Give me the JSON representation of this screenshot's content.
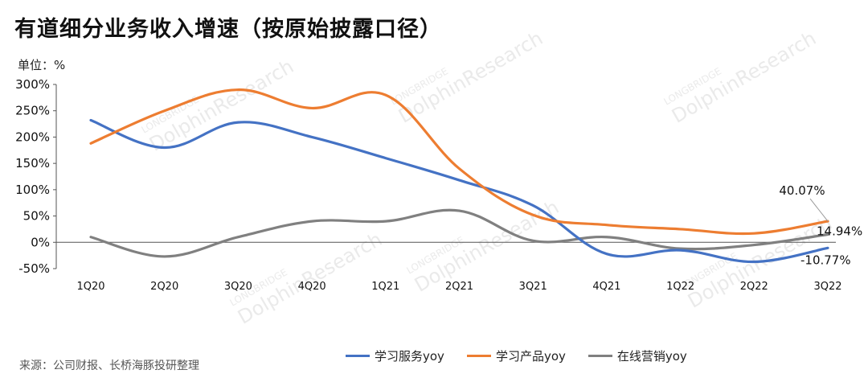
{
  "header": {
    "title": "有道细分业务收入增速（按原始披露口径）",
    "unit": "单位：%"
  },
  "footer": {
    "source": "来源：公司财报、长桥海豚投研整理"
  },
  "watermark": {
    "small": "LONGBRIDGE",
    "large": "DolphinResearch"
  },
  "chart_data": {
    "type": "line",
    "categories": [
      "1Q20",
      "2Q20",
      "3Q20",
      "4Q20",
      "1Q21",
      "2Q21",
      "3Q21",
      "4Q21",
      "1Q22",
      "2Q22",
      "3Q22"
    ],
    "ylim": [
      -50,
      300
    ],
    "yticks": [
      300,
      250,
      200,
      150,
      100,
      50,
      0,
      -50
    ],
    "ytick_labels": [
      "300%",
      "250%",
      "200%",
      "150%",
      "100%",
      "50%",
      "0%",
      "-50%"
    ],
    "grid": false,
    "legend": "bottom",
    "series": [
      {
        "name": "学习服务yoy",
        "color": "#4472C4",
        "values": [
          232,
          180,
          228,
          200,
          160,
          118,
          70,
          -22,
          -15,
          -37,
          -10.77
        ]
      },
      {
        "name": "学习产品yoy",
        "color": "#ED7D31",
        "values": [
          188,
          250,
          290,
          255,
          280,
          140,
          52,
          33,
          25,
          17,
          40.07
        ]
      },
      {
        "name": "在线营销yoy",
        "color": "#808080",
        "values": [
          10,
          -27,
          10,
          40,
          40,
          60,
          3,
          10,
          -12,
          -5,
          14.94
        ]
      }
    ],
    "annotations": [
      {
        "series": 1,
        "index": 10,
        "label": "40.07%"
      },
      {
        "series": 2,
        "index": 10,
        "label": "14.94%"
      },
      {
        "series": 0,
        "index": 10,
        "label": "-10.77%"
      }
    ]
  }
}
